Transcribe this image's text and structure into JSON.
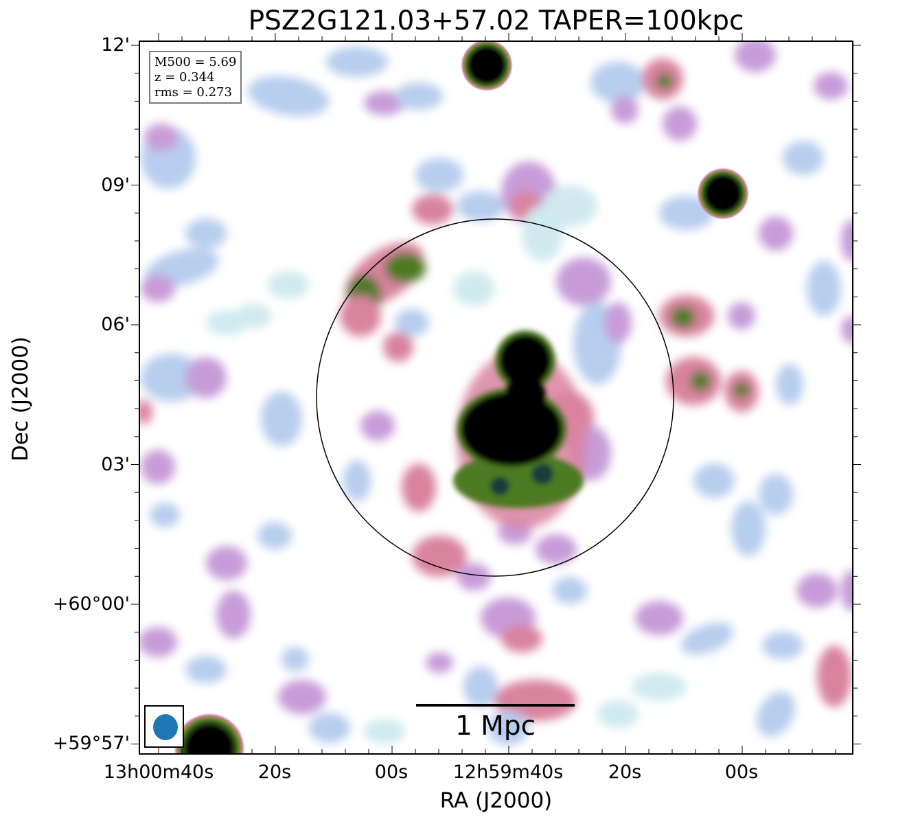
{
  "figure": {
    "title": "PSZ2G121.03+57.02 TAPER=100kpc",
    "xlabel": "RA (J2000)",
    "ylabel": "Dec (J2000)"
  },
  "info": {
    "mass_line": "M500 = 5.69",
    "redshift_line": "z = 0.344",
    "rms_line": "rms = 0.273"
  },
  "scalebar": {
    "label": "1 Mpc"
  },
  "beam": {
    "color": "#1f77b4"
  },
  "axes": {
    "x_ticks": [
      "13h00m40s",
      "20s",
      "00s",
      "12h59m40s",
      "20s",
      "00s"
    ],
    "y_ticks": [
      "12'",
      "09'",
      "06'",
      "03'",
      "+60°00'",
      "+59°57'"
    ]
  },
  "colors": {
    "faint": "#cfe9ef",
    "low": "#b7cdee",
    "mid": "#c79bd8",
    "pink": "#d9839f",
    "green": "#4d7a22",
    "dark": "#000000",
    "aperture": "#000000"
  }
}
